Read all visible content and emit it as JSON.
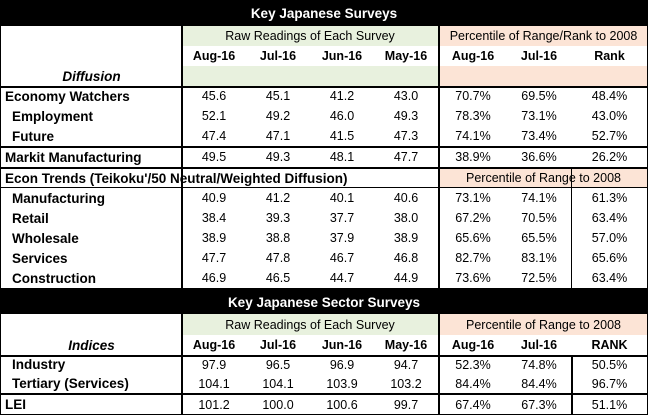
{
  "title_top": "Key Japanese Surveys",
  "title_sector": "Key Japanese Sector Surveys",
  "top": {
    "raw_label": "Raw Readings of Each Survey",
    "pct_label": "Percentile of Range/Rank  to 2008",
    "columns": [
      "Aug-16",
      "Jul-16",
      "Jun-16",
      "May-16",
      "Aug-16",
      "Jul-16",
      "Rank"
    ],
    "diffusion_label": "Diffusion",
    "rows": [
      {
        "label": "Economy Watchers",
        "vals": [
          "45.6",
          "45.1",
          "41.2",
          "43.0",
          "70.7%",
          "69.5%",
          "48.4%"
        ]
      },
      {
        "label": "Employment",
        "vals": [
          "52.1",
          "49.2",
          "46.0",
          "49.3",
          "78.3%",
          "73.1%",
          "43.0%"
        ]
      },
      {
        "label": "Future",
        "vals": [
          "47.4",
          "47.1",
          "41.5",
          "47.3",
          "74.1%",
          "73.4%",
          "52.7%"
        ]
      },
      {
        "label": "Markit Manufacturing",
        "vals": [
          "49.5",
          "49.3",
          "48.1",
          "47.7",
          "38.9%",
          "36.6%",
          "26.2%"
        ]
      }
    ]
  },
  "econ": {
    "label": "Econ Trends (Teikoku'/50 Neutral/Weighted Diffusion)",
    "pct_label": "Percentile of Range to 2008",
    "rows": [
      {
        "label": "Manufacturing",
        "vals": [
          "40.9",
          "41.2",
          "40.1",
          "40.6",
          "73.1%",
          "74.1%",
          "61.3%"
        ]
      },
      {
        "label": "Retail",
        "vals": [
          "38.4",
          "39.3",
          "37.7",
          "38.0",
          "67.2%",
          "70.5%",
          "63.4%"
        ]
      },
      {
        "label": "Wholesale",
        "vals": [
          "38.9",
          "38.8",
          "37.9",
          "38.9",
          "65.6%",
          "65.5%",
          "57.0%"
        ]
      },
      {
        "label": "Services",
        "vals": [
          "47.7",
          "47.8",
          "46.7",
          "46.8",
          "82.7%",
          "83.1%",
          "65.6%"
        ]
      },
      {
        "label": "Construction",
        "vals": [
          "46.9",
          "46.5",
          "44.7",
          "44.9",
          "73.6%",
          "72.5%",
          "63.4%"
        ]
      }
    ]
  },
  "sector": {
    "raw_label": "Raw Readings of Each Survey",
    "pct_label": "Percentile of Range to 2008",
    "indices_label": "Indices",
    "columns": [
      "Aug-16",
      "Jul-16",
      "Jun-16",
      "May-16",
      "Aug-16",
      "Jul-16",
      "RANK"
    ],
    "rows": [
      {
        "label": "Industry",
        "vals": [
          "97.9",
          "96.5",
          "96.9",
          "94.7",
          "52.3%",
          "74.8%",
          "50.5%"
        ]
      },
      {
        "label": "Tertiary (Services)",
        "vals": [
          "104.1",
          "104.1",
          "103.9",
          "103.2",
          "84.4%",
          "84.4%",
          "96.7%"
        ]
      },
      {
        "label": "LEI",
        "vals": [
          "101.2",
          "100.0",
          "100.6",
          "99.7",
          "67.4%",
          "67.3%",
          "51.1%"
        ]
      }
    ]
  }
}
